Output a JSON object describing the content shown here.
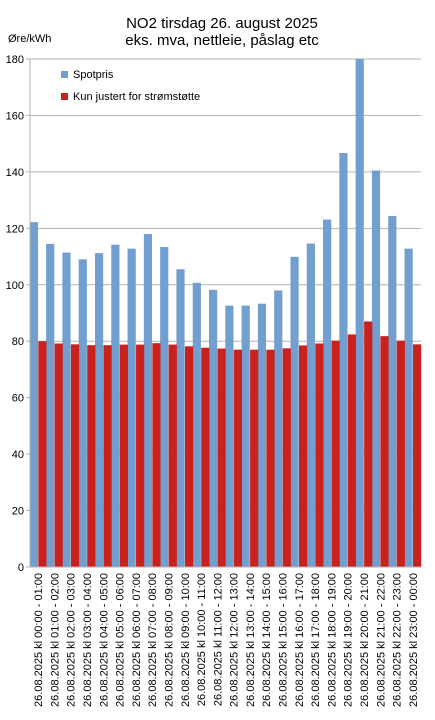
{
  "chart_data": {
    "type": "bar",
    "title": "NO2 tirsdag 26. august 2025",
    "subtitle": "eks. mva, nettleie, påslag etc",
    "ylabel": "Øre/kWh",
    "xlabel": "",
    "ylim": [
      0,
      180
    ],
    "yticks": [
      0,
      20,
      40,
      60,
      80,
      100,
      120,
      140,
      160,
      180
    ],
    "grid": true,
    "legend_position": "top-left",
    "categories": [
      "26.08.2025 kl 00:00 - 01:00",
      "26.08.2025 kl 01:00 - 02:00",
      "26.08.2025 kl 02:00 - 03:00",
      "26.08.2025 kl 03:00 - 04:00",
      "26.08.2025 kl 04:00 - 05:00",
      "26.08.2025 kl 05:00 - 06:00",
      "26.08.2025 kl 06:00 - 07:00",
      "26.08.2025 kl 07:00 - 08:00",
      "26.08.2025 kl 08:00 - 09:00",
      "26.08.2025 kl 09:00 - 10:00",
      "26.08.2025 kl 10:00 - 11:00",
      "26.08.2025 kl 11:00 - 12:00",
      "26.08.2025 kl 12:00 - 13:00",
      "26.08.2025 kl 13:00 - 14:00",
      "26.08.2025 kl 14:00 - 15:00",
      "26.08.2025 kl 15:00 - 16:00",
      "26.08.2025 kl 16:00 - 17:00",
      "26.08.2025 kl 17:00 - 18:00",
      "26.08.2025 kl 18:00 - 19:00",
      "26.08.2025 kl 19:00 - 20:00",
      "26.08.2025 kl 20:00 - 21:00",
      "26.08.2025 kl 21:00 - 22:00",
      "26.08.2025 kl 22:00 - 23:00",
      "26.08.2025 kl 23:00 - 00:00"
    ],
    "series": [
      {
        "name": "Spotpris",
        "color": "#729fcf",
        "values": [
          122.2,
          114.5,
          111.4,
          109.0,
          111.2,
          114.2,
          112.8,
          118.0,
          113.4,
          105.5,
          100.7,
          98.2,
          92.6,
          92.6,
          93.3,
          98.0,
          109.9,
          114.6,
          123.1,
          146.7,
          180.0,
          140.5,
          124.4,
          112.8
        ]
      },
      {
        "name": "Kun justert for strømstøtte",
        "color": "#c9211e",
        "values": [
          80.0,
          79.2,
          78.9,
          78.6,
          78.6,
          78.8,
          78.8,
          79.3,
          78.8,
          78.2,
          77.7,
          77.4,
          77.0,
          77.0,
          77.0,
          77.5,
          78.5,
          79.2,
          80.2,
          82.4,
          87.0,
          81.8,
          80.2,
          78.9
        ]
      }
    ]
  }
}
